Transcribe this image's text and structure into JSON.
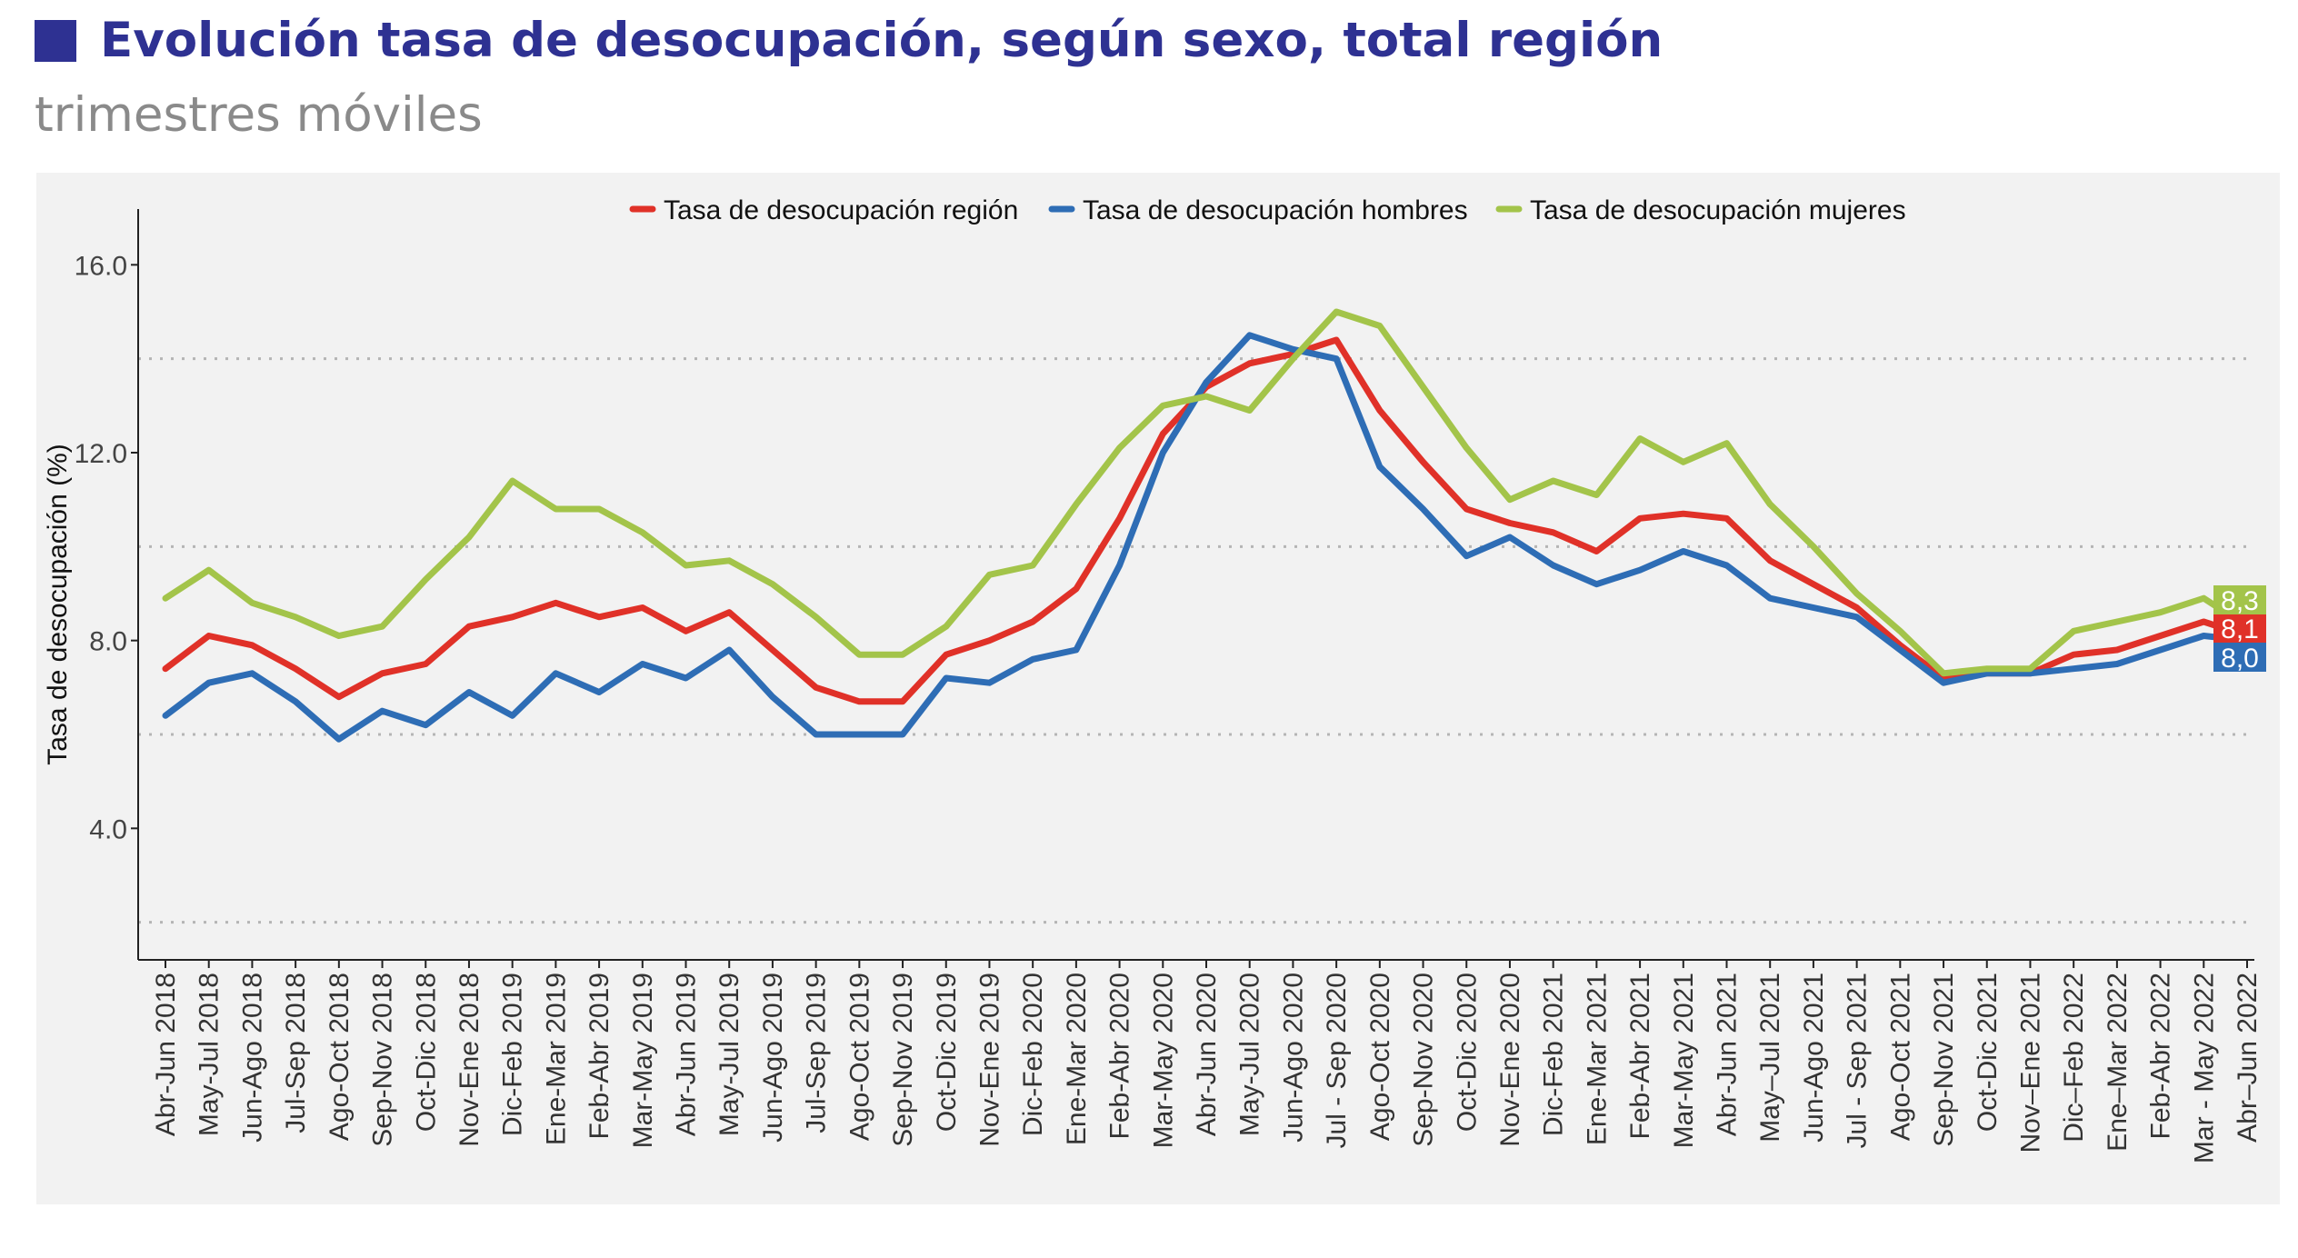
{
  "header": {
    "title": "Evolución tasa de desocupación, según sexo, total región",
    "subtitle": "trimestres móviles"
  },
  "colors": {
    "title": "#2e3192",
    "subtitle": "#8a8a8a",
    "panel_background": "#f2f2f2",
    "region": "#e03128",
    "hombres": "#2e6db5",
    "mujeres": "#a3c44a"
  },
  "chart_data": {
    "type": "line",
    "title": "",
    "xlabel": "",
    "ylabel": "Tasa de desocupación (%)",
    "ylim": [
      1.2,
      16.8
    ],
    "yticks": [
      "4.0",
      "8.0",
      "12.0",
      "16.0"
    ],
    "grid": "horizontal dotted",
    "legend_position": "top",
    "x": [
      "Abr-Jun 2018",
      "May-Jul 2018",
      "Jun-Ago 2018",
      "Jul-Sep 2018",
      "Ago-Oct 2018",
      "Sep-Nov 2018",
      "Oct-Dic 2018",
      "Nov-Ene 2018",
      "Dic-Feb 2019",
      "Ene-Mar 2019",
      "Feb-Abr 2019",
      "Mar-May 2019",
      "Abr-Jun 2019",
      "May-Jul 2019",
      "Jun-Ago 2019",
      "Jul-Sep 2019",
      "Ago-Oct 2019",
      "Sep-Nov 2019",
      "Oct-Dic 2019",
      "Nov-Ene 2019",
      "Dic-Feb 2020",
      "Ene-Mar 2020",
      "Feb-Abr 2020",
      "Mar-May 2020",
      "Abr-Jun 2020",
      "May-Jul 2020",
      "Jun-Ago 2020",
      "Jul - Sep 2020",
      "Ago-Oct 2020",
      "Sep-Nov 2020",
      "Oct-Dic 2020",
      "Nov-Ene 2020",
      "Dic-Feb 2021",
      "Ene-Mar 2021",
      "Feb-Abr 2021",
      "Mar-May 2021",
      "Abr-Jun 2021",
      "May–Jul 2021",
      "Jun-Ago 2021",
      "Jul - Sep 2021",
      "Ago-Oct 2021",
      "Sep-Nov 2021",
      "Oct-Dic 2021",
      "Nov–Ene 2021",
      "Dic–Feb 2022",
      "Ene–Mar 2022",
      "Feb-Abr 2022",
      "Mar - May 2022",
      "Abr–Jun 2022"
    ],
    "series": [
      {
        "name": "Tasa de desocupación región",
        "color": "#e03128",
        "values": [
          7.4,
          8.1,
          7.9,
          7.4,
          6.8,
          7.3,
          7.5,
          8.3,
          8.5,
          8.8,
          8.5,
          8.7,
          8.2,
          8.6,
          7.8,
          7.0,
          6.7,
          6.7,
          7.7,
          8.0,
          8.4,
          9.1,
          10.6,
          12.4,
          13.4,
          13.9,
          14.1,
          14.4,
          12.9,
          11.8,
          10.8,
          10.5,
          10.3,
          9.9,
          10.6,
          10.7,
          10.6,
          9.7,
          9.2,
          8.7,
          7.9,
          7.2,
          7.3,
          7.3,
          7.7,
          7.8,
          8.1,
          8.4,
          8.1
        ],
        "end_label": "8,1"
      },
      {
        "name": "Tasa de desocupación hombres",
        "color": "#2e6db5",
        "values": [
          6.4,
          7.1,
          7.3,
          6.7,
          5.9,
          6.5,
          6.2,
          6.9,
          6.4,
          7.3,
          6.9,
          7.5,
          7.2,
          7.8,
          6.8,
          6.0,
          6.0,
          6.0,
          7.2,
          7.1,
          7.6,
          7.8,
          9.6,
          12.0,
          13.5,
          14.5,
          14.2,
          14.0,
          11.7,
          10.8,
          9.8,
          10.2,
          9.6,
          9.2,
          9.5,
          9.9,
          9.6,
          8.9,
          8.7,
          8.5,
          7.8,
          7.1,
          7.3,
          7.3,
          7.4,
          7.5,
          7.8,
          8.1,
          8.0
        ],
        "end_label": "8,0"
      },
      {
        "name": "Tasa de desocupación mujeres",
        "color": "#a3c44a",
        "values": [
          8.9,
          9.5,
          8.8,
          8.5,
          8.1,
          8.3,
          9.3,
          10.2,
          11.4,
          10.8,
          10.8,
          10.3,
          9.6,
          9.7,
          9.2,
          8.5,
          7.7,
          7.7,
          8.3,
          9.4,
          9.6,
          10.9,
          12.1,
          13.0,
          13.2,
          12.9,
          14.0,
          15.0,
          14.7,
          13.4,
          12.1,
          11.0,
          11.4,
          11.1,
          12.3,
          11.8,
          12.2,
          10.9,
          10.0,
          9.0,
          8.2,
          7.3,
          7.4,
          7.4,
          8.2,
          8.4,
          8.6,
          8.9,
          8.3
        ],
        "end_label": "8,3"
      }
    ]
  }
}
